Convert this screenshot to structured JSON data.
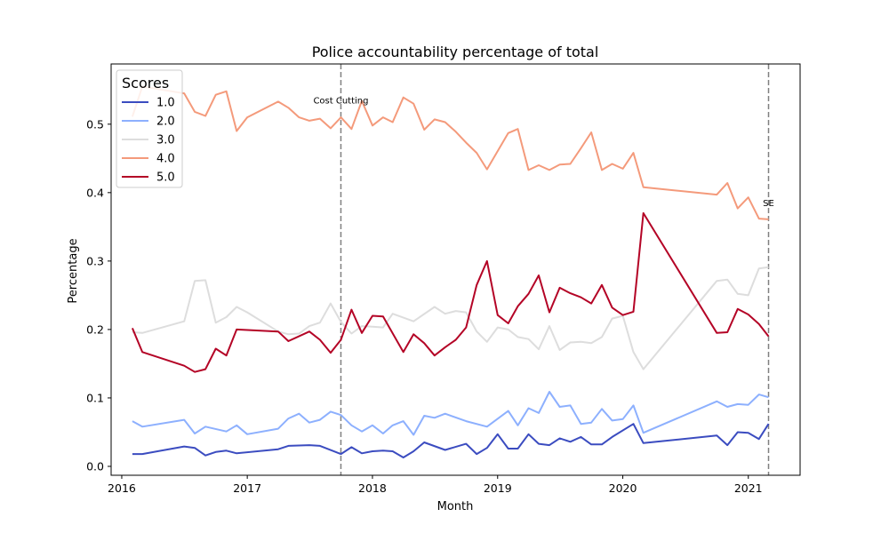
{
  "chart_data": {
    "type": "line",
    "title": "Police accountability percentage of total",
    "xlabel": "Month",
    "ylabel": "Percentage",
    "xlim": [
      "2015-12-01",
      "2021-06-01"
    ],
    "ylim": [
      -0.013,
      0.588
    ],
    "x_ticks": [
      {
        "label": "2016",
        "value": "2016-01-01"
      },
      {
        "label": "2017",
        "value": "2017-01-01"
      },
      {
        "label": "2018",
        "value": "2018-01-01"
      },
      {
        "label": "2019",
        "value": "2019-01-01"
      },
      {
        "label": "2020",
        "value": "2020-01-01"
      },
      {
        "label": "2021",
        "value": "2021-01-01"
      }
    ],
    "y_ticks": [
      0.0,
      0.1,
      0.2,
      0.3,
      0.4,
      0.5
    ],
    "y_tick_labels": [
      "0.0",
      "0.1",
      "0.2",
      "0.3",
      "0.4",
      "0.5"
    ],
    "grid": false,
    "legend": {
      "title": "Scores",
      "position": "top-left"
    },
    "annotations": [
      {
        "text": "Cost Cutting",
        "date": "2017-10-01",
        "y": 0.53
      },
      {
        "text": "SE",
        "date": "2021-03-01",
        "y": 0.38
      }
    ],
    "vlines": [
      "2017-10-01",
      "2021-03-01"
    ],
    "series": [
      {
        "name": "1.0",
        "color": "#3b4cc0",
        "points": [
          [
            "2016-02-01",
            0.018
          ],
          [
            "2016-03-01",
            0.018
          ],
          [
            "2016-07-01",
            0.029
          ],
          [
            "2016-08-01",
            0.027
          ],
          [
            "2016-09-01",
            0.016
          ],
          [
            "2016-10-01",
            0.021
          ],
          [
            "2016-11-01",
            0.023
          ],
          [
            "2016-12-01",
            0.019
          ],
          [
            "2017-04-01",
            0.025
          ],
          [
            "2017-05-01",
            0.03
          ],
          [
            "2017-07-01",
            0.031
          ],
          [
            "2017-08-01",
            0.03
          ],
          [
            "2017-10-01",
            0.018
          ],
          [
            "2017-11-01",
            0.028
          ],
          [
            "2017-12-01",
            0.019
          ],
          [
            "2018-01-01",
            0.022
          ],
          [
            "2018-02-01",
            0.023
          ],
          [
            "2018-03-01",
            0.022
          ],
          [
            "2018-04-01",
            0.013
          ],
          [
            "2018-05-01",
            0.022
          ],
          [
            "2018-06-01",
            0.035
          ],
          [
            "2018-08-01",
            0.024
          ],
          [
            "2018-10-01",
            0.033
          ],
          [
            "2018-11-01",
            0.018
          ],
          [
            "2018-12-01",
            0.027
          ],
          [
            "2019-01-01",
            0.047
          ],
          [
            "2019-02-01",
            0.026
          ],
          [
            "2019-03-01",
            0.026
          ],
          [
            "2019-04-01",
            0.047
          ],
          [
            "2019-05-01",
            0.033
          ],
          [
            "2019-06-01",
            0.031
          ],
          [
            "2019-07-01",
            0.041
          ],
          [
            "2019-08-01",
            0.036
          ],
          [
            "2019-09-01",
            0.043
          ],
          [
            "2019-10-01",
            0.032
          ],
          [
            "2019-11-01",
            0.032
          ],
          [
            "2019-12-01",
            0.043
          ],
          [
            "2020-02-01",
            0.062
          ],
          [
            "2020-03-01",
            0.034
          ],
          [
            "2020-10-01",
            0.045
          ],
          [
            "2020-11-01",
            0.031
          ],
          [
            "2020-12-01",
            0.05
          ],
          [
            "2021-01-01",
            0.049
          ],
          [
            "2021-02-01",
            0.04
          ],
          [
            "2021-03-01",
            0.062
          ]
        ]
      },
      {
        "name": "2.0",
        "color": "#8db0fe",
        "points": [
          [
            "2016-02-01",
            0.066
          ],
          [
            "2016-03-01",
            0.058
          ],
          [
            "2016-07-01",
            0.068
          ],
          [
            "2016-08-01",
            0.048
          ],
          [
            "2016-09-01",
            0.058
          ],
          [
            "2016-11-01",
            0.051
          ],
          [
            "2016-12-01",
            0.06
          ],
          [
            "2017-01-01",
            0.047
          ],
          [
            "2017-04-01",
            0.055
          ],
          [
            "2017-05-01",
            0.07
          ],
          [
            "2017-06-01",
            0.077
          ],
          [
            "2017-07-01",
            0.064
          ],
          [
            "2017-08-01",
            0.068
          ],
          [
            "2017-09-01",
            0.08
          ],
          [
            "2017-10-01",
            0.075
          ],
          [
            "2017-11-01",
            0.06
          ],
          [
            "2017-12-01",
            0.051
          ],
          [
            "2018-01-01",
            0.06
          ],
          [
            "2018-02-01",
            0.048
          ],
          [
            "2018-03-01",
            0.06
          ],
          [
            "2018-04-01",
            0.066
          ],
          [
            "2018-05-01",
            0.046
          ],
          [
            "2018-06-01",
            0.074
          ],
          [
            "2018-07-01",
            0.071
          ],
          [
            "2018-08-01",
            0.077
          ],
          [
            "2018-10-01",
            0.066
          ],
          [
            "2018-12-01",
            0.058
          ],
          [
            "2019-02-01",
            0.081
          ],
          [
            "2019-03-01",
            0.06
          ],
          [
            "2019-04-01",
            0.085
          ],
          [
            "2019-05-01",
            0.078
          ],
          [
            "2019-06-01",
            0.109
          ],
          [
            "2019-07-01",
            0.087
          ],
          [
            "2019-08-01",
            0.089
          ],
          [
            "2019-09-01",
            0.062
          ],
          [
            "2019-10-01",
            0.064
          ],
          [
            "2019-11-01",
            0.084
          ],
          [
            "2019-12-01",
            0.067
          ],
          [
            "2020-01-01",
            0.069
          ],
          [
            "2020-02-01",
            0.089
          ],
          [
            "2020-03-01",
            0.049
          ],
          [
            "2020-10-01",
            0.095
          ],
          [
            "2020-11-01",
            0.087
          ],
          [
            "2020-12-01",
            0.091
          ],
          [
            "2021-01-01",
            0.09
          ],
          [
            "2021-02-01",
            0.105
          ],
          [
            "2021-03-01",
            0.101
          ]
        ]
      },
      {
        "name": "3.0",
        "color": "#dddddd",
        "points": [
          [
            "2016-02-01",
            0.196
          ],
          [
            "2016-03-01",
            0.195
          ],
          [
            "2016-07-01",
            0.212
          ],
          [
            "2016-08-01",
            0.271
          ],
          [
            "2016-09-01",
            0.272
          ],
          [
            "2016-10-01",
            0.21
          ],
          [
            "2016-11-01",
            0.218
          ],
          [
            "2016-12-01",
            0.233
          ],
          [
            "2017-01-01",
            0.225
          ],
          [
            "2017-04-01",
            0.197
          ],
          [
            "2017-05-01",
            0.193
          ],
          [
            "2017-06-01",
            0.194
          ],
          [
            "2017-07-01",
            0.205
          ],
          [
            "2017-08-01",
            0.21
          ],
          [
            "2017-09-01",
            0.238
          ],
          [
            "2017-10-01",
            0.211
          ],
          [
            "2017-11-01",
            0.194
          ],
          [
            "2017-12-01",
            0.205
          ],
          [
            "2018-01-01",
            0.204
          ],
          [
            "2018-02-01",
            0.203
          ],
          [
            "2018-03-01",
            0.223
          ],
          [
            "2018-05-01",
            0.212
          ],
          [
            "2018-07-01",
            0.233
          ],
          [
            "2018-08-01",
            0.223
          ],
          [
            "2018-09-01",
            0.227
          ],
          [
            "2018-10-01",
            0.225
          ],
          [
            "2018-11-01",
            0.197
          ],
          [
            "2018-12-01",
            0.182
          ],
          [
            "2019-01-01",
            0.203
          ],
          [
            "2019-02-01",
            0.2
          ],
          [
            "2019-03-01",
            0.189
          ],
          [
            "2019-04-01",
            0.186
          ],
          [
            "2019-05-01",
            0.171
          ],
          [
            "2019-06-01",
            0.205
          ],
          [
            "2019-07-01",
            0.17
          ],
          [
            "2019-08-01",
            0.181
          ],
          [
            "2019-09-01",
            0.182
          ],
          [
            "2019-10-01",
            0.18
          ],
          [
            "2019-11-01",
            0.189
          ],
          [
            "2019-12-01",
            0.216
          ],
          [
            "2020-01-01",
            0.22
          ],
          [
            "2020-02-01",
            0.167
          ],
          [
            "2020-03-01",
            0.142
          ],
          [
            "2020-10-01",
            0.271
          ],
          [
            "2020-11-01",
            0.273
          ],
          [
            "2020-12-01",
            0.252
          ],
          [
            "2021-01-01",
            0.25
          ],
          [
            "2021-02-01",
            0.289
          ],
          [
            "2021-03-01",
            0.291
          ]
        ]
      },
      {
        "name": "4.0",
        "color": "#f49a7b",
        "points": [
          [
            "2016-02-01",
            0.511
          ],
          [
            "2016-03-01",
            0.555
          ],
          [
            "2016-07-01",
            0.545
          ],
          [
            "2016-08-01",
            0.518
          ],
          [
            "2016-09-01",
            0.512
          ],
          [
            "2016-10-01",
            0.543
          ],
          [
            "2016-11-01",
            0.548
          ],
          [
            "2016-12-01",
            0.49
          ],
          [
            "2017-01-01",
            0.51
          ],
          [
            "2017-04-01",
            0.533
          ],
          [
            "2017-05-01",
            0.524
          ],
          [
            "2017-06-01",
            0.51
          ],
          [
            "2017-07-01",
            0.505
          ],
          [
            "2017-08-01",
            0.508
          ],
          [
            "2017-09-01",
            0.494
          ],
          [
            "2017-10-01",
            0.51
          ],
          [
            "2017-11-01",
            0.493
          ],
          [
            "2017-12-01",
            0.534
          ],
          [
            "2018-01-01",
            0.498
          ],
          [
            "2018-02-01",
            0.51
          ],
          [
            "2018-03-01",
            0.503
          ],
          [
            "2018-04-01",
            0.539
          ],
          [
            "2018-05-01",
            0.53
          ],
          [
            "2018-06-01",
            0.492
          ],
          [
            "2018-07-01",
            0.507
          ],
          [
            "2018-08-01",
            0.503
          ],
          [
            "2018-09-01",
            0.489
          ],
          [
            "2018-10-01",
            0.473
          ],
          [
            "2018-11-01",
            0.458
          ],
          [
            "2018-12-01",
            0.434
          ],
          [
            "2019-02-01",
            0.487
          ],
          [
            "2019-03-01",
            0.493
          ],
          [
            "2019-04-01",
            0.433
          ],
          [
            "2019-05-01",
            0.44
          ],
          [
            "2019-06-01",
            0.433
          ],
          [
            "2019-07-01",
            0.441
          ],
          [
            "2019-08-01",
            0.442
          ],
          [
            "2019-09-01",
            0.465
          ],
          [
            "2019-10-01",
            0.488
          ],
          [
            "2019-11-01",
            0.433
          ],
          [
            "2019-12-01",
            0.442
          ],
          [
            "2020-01-01",
            0.435
          ],
          [
            "2020-02-01",
            0.458
          ],
          [
            "2020-03-01",
            0.408
          ],
          [
            "2020-10-01",
            0.397
          ],
          [
            "2020-11-01",
            0.414
          ],
          [
            "2020-12-01",
            0.377
          ],
          [
            "2021-01-01",
            0.393
          ],
          [
            "2021-02-01",
            0.362
          ],
          [
            "2021-03-01",
            0.361
          ]
        ]
      },
      {
        "name": "5.0",
        "color": "#b40426",
        "points": [
          [
            "2016-02-01",
            0.202
          ],
          [
            "2016-03-01",
            0.167
          ],
          [
            "2016-07-01",
            0.147
          ],
          [
            "2016-08-01",
            0.138
          ],
          [
            "2016-09-01",
            0.142
          ],
          [
            "2016-10-01",
            0.172
          ],
          [
            "2016-11-01",
            0.162
          ],
          [
            "2016-12-01",
            0.2
          ],
          [
            "2017-04-01",
            0.197
          ],
          [
            "2017-05-01",
            0.183
          ],
          [
            "2017-07-01",
            0.197
          ],
          [
            "2017-08-01",
            0.185
          ],
          [
            "2017-09-01",
            0.166
          ],
          [
            "2017-10-01",
            0.185
          ],
          [
            "2017-11-01",
            0.229
          ],
          [
            "2017-12-01",
            0.195
          ],
          [
            "2018-01-01",
            0.22
          ],
          [
            "2018-02-01",
            0.219
          ],
          [
            "2018-04-01",
            0.167
          ],
          [
            "2018-05-01",
            0.193
          ],
          [
            "2018-06-01",
            0.18
          ],
          [
            "2018-07-01",
            0.162
          ],
          [
            "2018-08-01",
            0.174
          ],
          [
            "2018-09-01",
            0.185
          ],
          [
            "2018-10-01",
            0.203
          ],
          [
            "2018-11-01",
            0.265
          ],
          [
            "2018-12-01",
            0.3
          ],
          [
            "2019-01-01",
            0.221
          ],
          [
            "2019-02-01",
            0.209
          ],
          [
            "2019-03-01",
            0.234
          ],
          [
            "2019-04-01",
            0.252
          ],
          [
            "2019-05-01",
            0.279
          ],
          [
            "2019-06-01",
            0.225
          ],
          [
            "2019-07-01",
            0.261
          ],
          [
            "2019-08-01",
            0.253
          ],
          [
            "2019-09-01",
            0.247
          ],
          [
            "2019-10-01",
            0.238
          ],
          [
            "2019-11-01",
            0.265
          ],
          [
            "2019-12-01",
            0.232
          ],
          [
            "2020-01-01",
            0.221
          ],
          [
            "2020-02-01",
            0.226
          ],
          [
            "2020-03-01",
            0.37
          ],
          [
            "2020-10-01",
            0.195
          ],
          [
            "2020-11-01",
            0.196
          ],
          [
            "2020-12-01",
            0.23
          ],
          [
            "2021-01-01",
            0.222
          ],
          [
            "2021-02-01",
            0.208
          ],
          [
            "2021-03-01",
            0.19
          ]
        ]
      }
    ]
  }
}
